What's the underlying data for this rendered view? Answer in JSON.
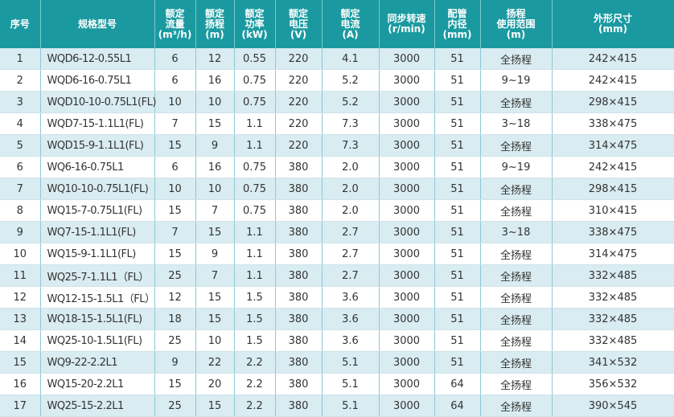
{
  "headers": [
    "序号",
    "规格型号",
    "额定\n流量\n(m³/h)",
    "额定\n扬程\n(m)",
    "额定\n功率\n(kW)",
    "额定\n电压\n(V)",
    "额定\n电流\n(A)",
    "同步转速\n(r/min)",
    "配管\n内径\n(mm)",
    "扬程\n使用范围\n(m)",
    "外形尺寸\n(mm)"
  ],
  "colors": {
    "header_bg": "#1a9aa0",
    "row_alt": "#d9ecf2"
  },
  "rows": [
    [
      "1",
      "WQD6-12-0.55L1",
      "6",
      "12",
      "0.55",
      "220",
      "4.1",
      "3000",
      "51",
      "全扬程",
      "242×415"
    ],
    [
      "2",
      "WQD6-16-0.75L1",
      "6",
      "16",
      "0.75",
      "220",
      "5.2",
      "3000",
      "51",
      "9~19",
      "242×415"
    ],
    [
      "3",
      "WQD10-10-0.75L1(FL)",
      "10",
      "10",
      "0.75",
      "220",
      "5.2",
      "3000",
      "51",
      "全扬程",
      "298×415"
    ],
    [
      "4",
      "WQD7-15-1.1L1(FL)",
      "7",
      "15",
      "1.1",
      "220",
      "7.3",
      "3000",
      "51",
      "3~18",
      "338×475"
    ],
    [
      "5",
      "WQD15-9-1.1L1(FL)",
      "15",
      "9",
      "1.1",
      "220",
      "7.3",
      "3000",
      "51",
      "全扬程",
      "314×475"
    ],
    [
      "6",
      "WQ6-16-0.75L1",
      "6",
      "16",
      "0.75",
      "380",
      "2.0",
      "3000",
      "51",
      "9~19",
      "242×415"
    ],
    [
      "7",
      "WQ10-10-0.75L1(FL)",
      "10",
      "10",
      "0.75",
      "380",
      "2.0",
      "3000",
      "51",
      "全扬程",
      "298×415"
    ],
    [
      "8",
      "WQ15-7-0.75L1(FL)",
      "15",
      "7",
      "0.75",
      "380",
      "2.0",
      "3000",
      "51",
      "全扬程",
      "310×415"
    ],
    [
      "9",
      "WQ7-15-1.1L1(FL)",
      "7",
      "15",
      "1.1",
      "380",
      "2.7",
      "3000",
      "51",
      "3~18",
      "338×475"
    ],
    [
      "10",
      "WQ15-9-1.1L1(FL)",
      "15",
      "9",
      "1.1",
      "380",
      "2.7",
      "3000",
      "51",
      "全扬程",
      "314×475"
    ],
    [
      "11",
      "WQ25-7-1.1L1（FL）",
      "25",
      "7",
      "1.1",
      "380",
      "2.7",
      "3000",
      "51",
      "全扬程",
      "332×485"
    ],
    [
      "12",
      "WQ12-15-1.5L1（FL）",
      "12",
      "15",
      "1.5",
      "380",
      "3.6",
      "3000",
      "51",
      "全扬程",
      "332×485"
    ],
    [
      "13",
      "WQ18-15-1.5L1(FL)",
      "18",
      "15",
      "1.5",
      "380",
      "3.6",
      "3000",
      "51",
      "全扬程",
      "332×485"
    ],
    [
      "14",
      "WQ25-10-1.5L1(FL)",
      "25",
      "10",
      "1.5",
      "380",
      "3.6",
      "3000",
      "51",
      "全扬程",
      "332×485"
    ],
    [
      "15",
      "WQ9-22-2.2L1",
      "9",
      "22",
      "2.2",
      "380",
      "5.1",
      "3000",
      "51",
      "全扬程",
      "341×532"
    ],
    [
      "16",
      "WQ15-20-2.2L1",
      "15",
      "20",
      "2.2",
      "380",
      "5.1",
      "3000",
      "64",
      "全扬程",
      "356×532"
    ],
    [
      "17",
      "WQ25-15-2.2L1",
      "25",
      "15",
      "2.2",
      "380",
      "5.1",
      "3000",
      "64",
      "全扬程",
      "390×545"
    ]
  ]
}
